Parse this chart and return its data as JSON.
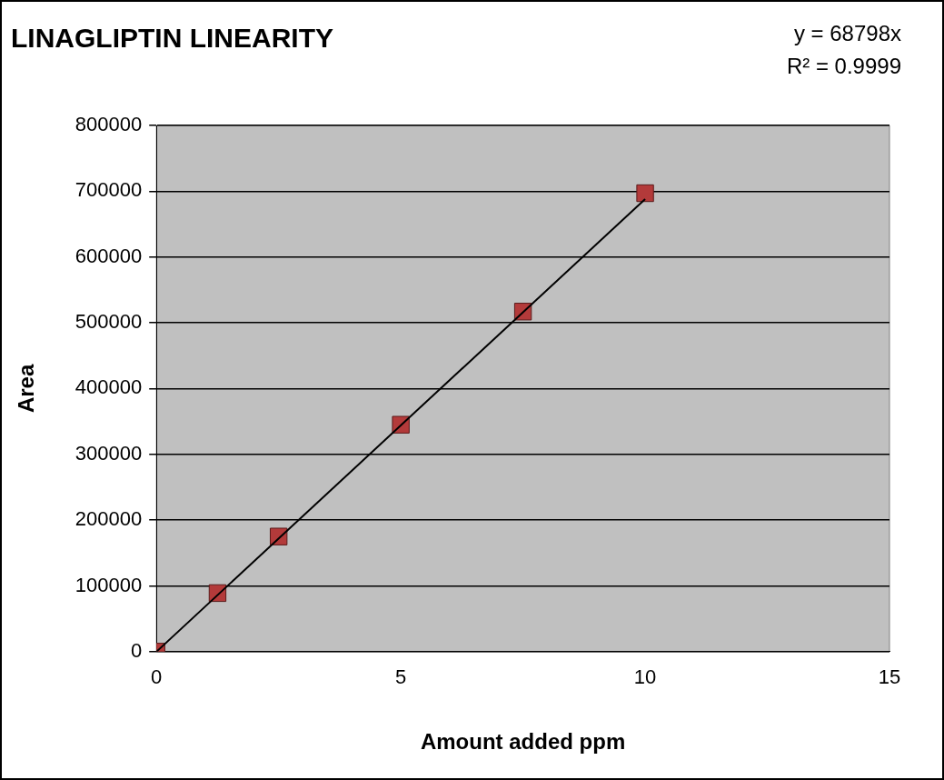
{
  "chart_data": {
    "type": "scatter",
    "title": "LINAGLIPTIN LINEARITY",
    "xlabel": "Amount added ppm",
    "ylabel": "Area",
    "annotations": [
      "y = 68798x",
      "R² = 0.9999"
    ],
    "series": [
      {
        "color": "#b33a3a",
        "x": [
          0,
          1.25,
          2.5,
          5,
          7.5,
          10
        ],
        "values": [
          0,
          89000,
          175000,
          345000,
          517000,
          697000
        ],
        "marker": "square"
      },
      {
        "type": "line",
        "color": "#000000",
        "x": [
          0,
          10
        ],
        "values": [
          0,
          688000
        ],
        "marker": "none"
      }
    ],
    "xlim": [
      0,
      15
    ],
    "xticks": [
      0,
      5,
      10,
      15
    ],
    "ylim": [
      0,
      800000
    ],
    "yticks": [
      0,
      100000,
      200000,
      300000,
      400000,
      500000,
      600000,
      700000,
      800000
    ],
    "grid": "y",
    "legend": false
  }
}
